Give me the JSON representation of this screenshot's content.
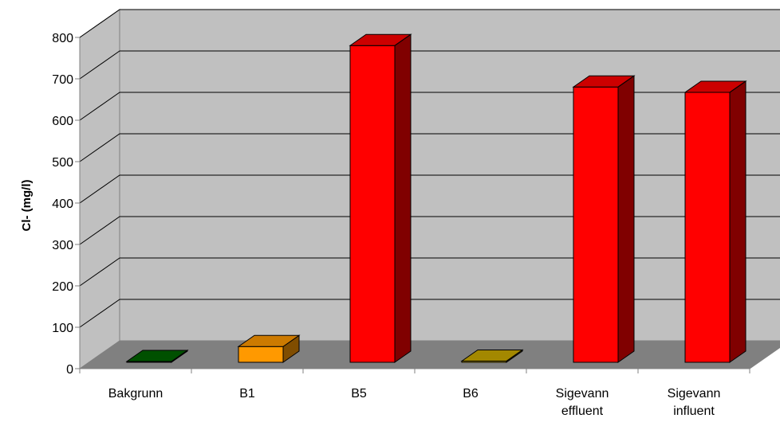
{
  "chart_data": {
    "type": "bar",
    "title": "",
    "xlabel": "",
    "ylabel": "Cl- (mg/l)",
    "ylim": [
      0,
      800
    ],
    "yticks": [
      "0",
      "100",
      "200",
      "300",
      "400",
      "500",
      "600",
      "700",
      "800"
    ],
    "grid": true,
    "legend": "none",
    "categories": [
      [
        "Bakgrunn"
      ],
      [
        "B1"
      ],
      [
        "B5"
      ],
      [
        "B6"
      ],
      [
        "Sigevann",
        "effluent"
      ],
      [
        "Sigevann",
        "influent"
      ]
    ],
    "values": [
      2,
      38,
      765,
      3,
      665,
      652
    ],
    "bar_colors": [
      "#006400",
      "#ff9900",
      "#ff0000",
      "#ccaa00",
      "#ff0000",
      "#ff0000"
    ],
    "background_color": "#c0c0c0",
    "floor_color": "#808080"
  }
}
